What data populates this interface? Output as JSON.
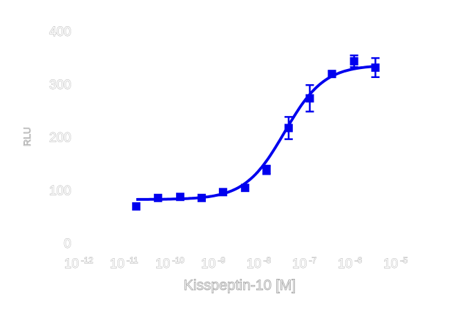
{
  "chart_data": {
    "type": "scatter",
    "title": "",
    "xlabel": "Kisspeptin-10 [M]",
    "ylabel": "RLU",
    "x_scale": "log",
    "xlim": [
      1e-12,
      1e-05
    ],
    "ylim": [
      0,
      400
    ],
    "grid": false,
    "x_ticks": [
      {
        "base": "10",
        "exp": "-12"
      },
      {
        "base": "10",
        "exp": "-11"
      },
      {
        "base": "10",
        "exp": "-10"
      },
      {
        "base": "10",
        "exp": "-9"
      },
      {
        "base": "10",
        "exp": "-8"
      },
      {
        "base": "10",
        "exp": "-7"
      },
      {
        "base": "10",
        "exp": "-6"
      },
      {
        "base": "10",
        "exp": "-5"
      }
    ],
    "y_ticks": [
      "0",
      "100",
      "200",
      "300",
      "400"
    ],
    "color": "#0000ee",
    "series": [
      {
        "x": [
          2.5e-11,
          7.5e-11,
          2.3e-10,
          6.8e-10,
          2e-09,
          6.1e-09,
          1.8e-08,
          5.5e-08,
          1.6e-07,
          4.9e-07,
          1.5e-06,
          4.4e-06
        ],
        "y": [
          69,
          85,
          87,
          85,
          96,
          104,
          138,
          217,
          273,
          319,
          343,
          331
        ],
        "error": [
          0,
          0,
          0,
          0,
          0,
          0,
          8,
          21,
          25,
          5,
          11,
          18
        ]
      }
    ],
    "fit": {
      "type": "sigmoidal dose-response",
      "bottom": 82,
      "top": 336,
      "log_ec50": -7.35,
      "hill": 1.0
    }
  }
}
